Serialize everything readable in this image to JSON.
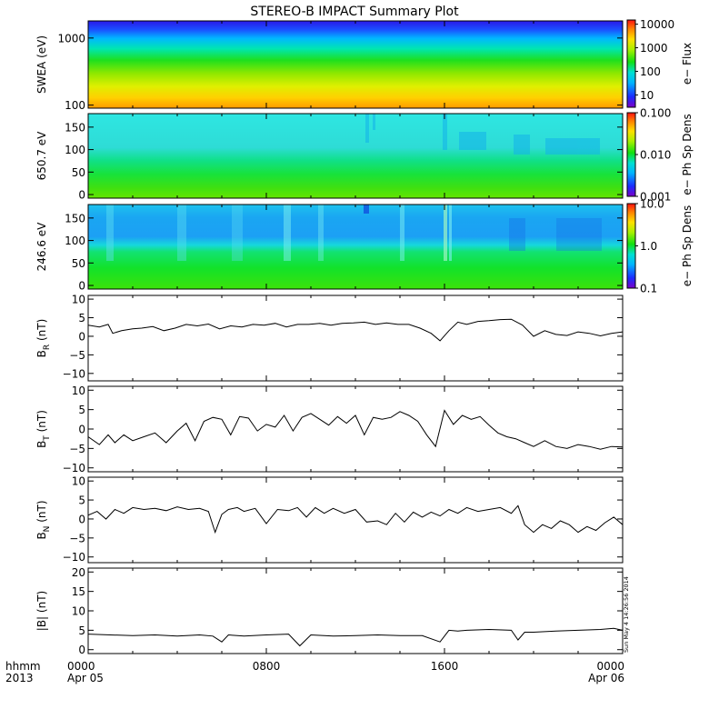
{
  "title": "STEREO-B IMPACT Summary Plot",
  "timestamp": "Sun May  4 14:26:56 2014",
  "x_axis": {
    "row1_label": "hhmm",
    "row2_label": "2013",
    "ticks": [
      {
        "hour": 0,
        "label": "0000",
        "date": "Apr 05"
      },
      {
        "hour": 8,
        "label": "0800",
        "date": ""
      },
      {
        "hour": 16,
        "label": "1600",
        "date": ""
      },
      {
        "hour": 24,
        "label": "0000",
        "date": "Apr 06"
      }
    ]
  },
  "chart_data": [
    {
      "type": "heatmap",
      "name": "swea",
      "ylabel": "SWEA (eV)",
      "yscale": "log",
      "ylim": [
        90,
        1800
      ],
      "yticks": [
        {
          "v": 100,
          "label": "100"
        },
        {
          "v": 1000,
          "label": "1000"
        }
      ],
      "colorbar": {
        "label": "e− Flux",
        "scale": "log",
        "range": [
          3,
          15000
        ],
        "ticks": [
          {
            "v": 10,
            "label": "10"
          },
          {
            "v": 100,
            "label": "100"
          },
          {
            "v": 1000,
            "label": "1000"
          },
          {
            "v": 10000,
            "label": "10000"
          }
        ]
      }
    },
    {
      "type": "heatmap",
      "name": "pad_650",
      "ylabel": "650.7 eV",
      "yscale": "linear",
      "ylim": [
        -8,
        180
      ],
      "yticks": [
        {
          "v": 0,
          "label": "0"
        },
        {
          "v": 50,
          "label": "50"
        },
        {
          "v": 100,
          "label": "100"
        },
        {
          "v": 150,
          "label": "150"
        }
      ],
      "colorbar": {
        "label": "e− Ph Sp Dens",
        "scale": "log",
        "range": [
          0.001,
          0.1
        ],
        "ticks": [
          {
            "v": 0.001,
            "label": "0.001"
          },
          {
            "v": 0.01,
            "label": "0.010"
          },
          {
            "v": 0.1,
            "label": "0.100"
          }
        ]
      }
    },
    {
      "type": "heatmap",
      "name": "pad_246",
      "ylabel": "246.6 eV",
      "yscale": "linear",
      "ylim": [
        -8,
        180
      ],
      "yticks": [
        {
          "v": 0,
          "label": "0"
        },
        {
          "v": 50,
          "label": "50"
        },
        {
          "v": 100,
          "label": "100"
        },
        {
          "v": 150,
          "label": "150"
        }
      ],
      "colorbar": {
        "label": "e− Ph Sp Dens",
        "scale": "log",
        "range": [
          0.1,
          10
        ],
        "ticks": [
          {
            "v": 0.1,
            "label": "0.1"
          },
          {
            "v": 1,
            "label": "1.0"
          },
          {
            "v": 10,
            "label": "10.0"
          }
        ]
      }
    },
    {
      "type": "line",
      "name": "br",
      "ylabel": "B",
      "ylabel_sub": "R",
      "ylabel_unit": " (nT)",
      "ylim": [
        -12,
        11
      ],
      "yticks": [
        {
          "v": -10,
          "label": "−10"
        },
        {
          "v": -5,
          "label": "−5"
        },
        {
          "v": 0,
          "label": "0"
        },
        {
          "v": 5,
          "label": "5"
        },
        {
          "v": 10,
          "label": "10"
        }
      ],
      "x": [
        0,
        0.5,
        0.9,
        1.1,
        1.5,
        2,
        2.4,
        2.9,
        3.4,
        3.9,
        4.4,
        4.9,
        5.4,
        5.9,
        6.4,
        6.9,
        7.4,
        7.9,
        8.4,
        8.9,
        9.4,
        9.9,
        10.4,
        10.9,
        11.4,
        11.9,
        12.4,
        12.9,
        13.4,
        13.9,
        14.4,
        14.9,
        15.4,
        15.8,
        16.2,
        16.6,
        17,
        17.5,
        18,
        18.5,
        19,
        19.5,
        20,
        20.5,
        21,
        21.5,
        22,
        22.5,
        23,
        23.5,
        24
      ],
      "values": [
        3,
        2.5,
        3.2,
        0.8,
        1.5,
        2,
        2.2,
        2.6,
        1.5,
        2.2,
        3.2,
        2.8,
        3.3,
        2,
        2.8,
        2.5,
        3.2,
        3,
        3.5,
        2.5,
        3.2,
        3.2,
        3.5,
        3,
        3.5,
        3.6,
        3.8,
        3.2,
        3.6,
        3.2,
        3.2,
        2.2,
        0.8,
        -1.2,
        1.5,
        3.8,
        3.2,
        4,
        4.2,
        4.5,
        4.6,
        3,
        0,
        1.5,
        0.5,
        0.2,
        1.2,
        0.8,
        0.1,
        0.8,
        1.2
      ]
    },
    {
      "type": "line",
      "name": "bt",
      "ylabel": "B",
      "ylabel_sub": "T",
      "ylabel_unit": " (nT)",
      "ylim": [
        -11,
        11
      ],
      "yticks": [
        {
          "v": -10,
          "label": "−10"
        },
        {
          "v": -5,
          "label": "−5"
        },
        {
          "v": 0,
          "label": "0"
        },
        {
          "v": 5,
          "label": "5"
        },
        {
          "v": 10,
          "label": "10"
        }
      ],
      "x": [
        0,
        0.5,
        0.9,
        1.2,
        1.6,
        2,
        2.5,
        3,
        3.5,
        4,
        4.4,
        4.8,
        5.2,
        5.6,
        6,
        6.4,
        6.8,
        7.2,
        7.6,
        8,
        8.4,
        8.8,
        9.2,
        9.6,
        10,
        10.4,
        10.8,
        11.2,
        11.6,
        12,
        12.4,
        12.8,
        13.2,
        13.6,
        14,
        14.4,
        14.8,
        15.2,
        15.6,
        16,
        16.4,
        16.8,
        17.2,
        17.6,
        18,
        18.4,
        18.8,
        19.2,
        19.6,
        20,
        20.5,
        21,
        21.5,
        22,
        22.5,
        23,
        23.5,
        24
      ],
      "values": [
        -2,
        -4,
        -1.5,
        -3.5,
        -1.5,
        -3,
        -2,
        -1,
        -3.5,
        -0.5,
        1.5,
        -3,
        2,
        3,
        2.5,
        -1.5,
        3.2,
        2.8,
        -0.5,
        1.2,
        0.5,
        3.5,
        -0.5,
        3,
        4,
        2.5,
        1,
        3.2,
        1.5,
        3.5,
        -1.5,
        3,
        2.5,
        3,
        4.5,
        3.5,
        2,
        -1.5,
        -4.5,
        4.8,
        1.2,
        3.5,
        2.5,
        3.2,
        1,
        -1,
        -2,
        -2.5,
        -3.5,
        -4.5,
        -3,
        -4.5,
        -5,
        -4,
        -4.5,
        -5.2,
        -4.5,
        -4.6
      ]
    },
    {
      "type": "line",
      "name": "bn",
      "ylabel": "B",
      "ylabel_sub": "N",
      "ylabel_unit": " (nT)",
      "ylim": [
        -11.5,
        11
      ],
      "yticks": [
        {
          "v": -10,
          "label": "−10"
        },
        {
          "v": -5,
          "label": "−5"
        },
        {
          "v": 0,
          "label": "0"
        },
        {
          "v": 5,
          "label": "5"
        },
        {
          "v": 10,
          "label": "10"
        }
      ],
      "x": [
        0,
        0.4,
        0.8,
        1.2,
        1.6,
        2,
        2.5,
        3,
        3.5,
        4,
        4.5,
        5,
        5.4,
        5.7,
        6,
        6.3,
        6.7,
        7,
        7.5,
        8,
        8.5,
        9,
        9.4,
        9.8,
        10.2,
        10.6,
        11,
        11.5,
        12,
        12.5,
        13,
        13.4,
        13.8,
        14.2,
        14.6,
        15,
        15.4,
        15.8,
        16.2,
        16.6,
        17,
        17.5,
        18,
        18.5,
        19,
        19.3,
        19.6,
        20,
        20.4,
        20.8,
        21.2,
        21.6,
        22,
        22.4,
        22.8,
        23.2,
        23.6,
        24
      ],
      "values": [
        1,
        2,
        0,
        2.5,
        1.5,
        3,
        2.5,
        2.8,
        2.2,
        3.2,
        2.5,
        2.8,
        2,
        -3.5,
        1.2,
        2.5,
        3,
        2,
        2.8,
        -1.2,
        2.5,
        2.2,
        3,
        0.5,
        3,
        1.5,
        2.8,
        1.5,
        2.5,
        -0.8,
        -0.5,
        -1.5,
        1.5,
        -0.8,
        1.8,
        0.5,
        1.8,
        0.8,
        2.5,
        1.5,
        3,
        2,
        2.5,
        3,
        1.5,
        3.5,
        -1.5,
        -3.5,
        -1.5,
        -2.5,
        -0.5,
        -1.5,
        -3.5,
        -2,
        -3,
        -1,
        0.5,
        -1.5
      ]
    },
    {
      "type": "line",
      "name": "bmag",
      "ylabel": "|B| (nT)",
      "ylim": [
        -1,
        21
      ],
      "yticks": [
        {
          "v": 0,
          "label": "0"
        },
        {
          "v": 5,
          "label": "5"
        },
        {
          "v": 10,
          "label": "10"
        },
        {
          "v": 15,
          "label": "15"
        },
        {
          "v": 20,
          "label": "20"
        }
      ],
      "x": [
        0,
        1,
        2,
        3,
        4,
        5,
        5.6,
        6,
        6.3,
        7,
        8,
        9,
        9.5,
        10,
        11,
        12,
        13,
        14,
        15,
        15.8,
        16.2,
        16.6,
        17,
        18,
        19,
        19.3,
        19.6,
        20,
        21,
        22,
        23,
        23.6,
        24
      ],
      "values": [
        4,
        3.8,
        3.6,
        3.8,
        3.5,
        3.8,
        3.5,
        2,
        3.8,
        3.5,
        3.8,
        4,
        1,
        3.8,
        3.5,
        3.6,
        3.8,
        3.6,
        3.6,
        2,
        5,
        4.8,
        5,
        5.2,
        5,
        2.5,
        4.5,
        4.5,
        4.8,
        5,
        5.2,
        5.5,
        5
      ]
    }
  ]
}
